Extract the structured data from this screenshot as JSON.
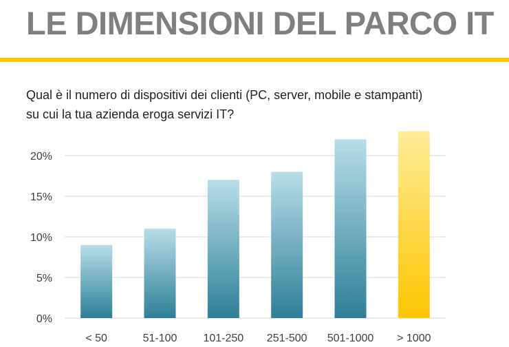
{
  "header": {
    "title": "LE DIMENSIONI DEL PARCO IT",
    "question_line1": "Qual è il numero di dispositivi dei clienti (PC, server, mobile e stampanti)",
    "question_line2": "su cui la tua azienda eroga servizi IT?"
  },
  "colors": {
    "title": "#7f7f7f",
    "rule": "#fcc600",
    "bar_top": "#b8dde8",
    "bar_bottom": "#2e7f97",
    "highlight_top": "#ffeb99",
    "highlight_bottom": "#fcc600",
    "grid": "#d9d9d9"
  },
  "chart_data": {
    "type": "bar",
    "title": "",
    "xlabel": "",
    "ylabel": "",
    "categories": [
      "< 50",
      "51-100",
      "101-250",
      "251-500",
      "501-1000",
      "> 1000"
    ],
    "values": [
      9,
      11,
      17,
      18,
      22,
      23
    ],
    "highlight_index": 5,
    "ylim": [
      0,
      25
    ],
    "yticks": [
      0,
      5,
      10,
      15,
      20
    ],
    "ytick_labels": [
      "0%",
      "5%",
      "10%",
      "15%",
      "20%"
    ],
    "grid": true,
    "legend": "none"
  }
}
